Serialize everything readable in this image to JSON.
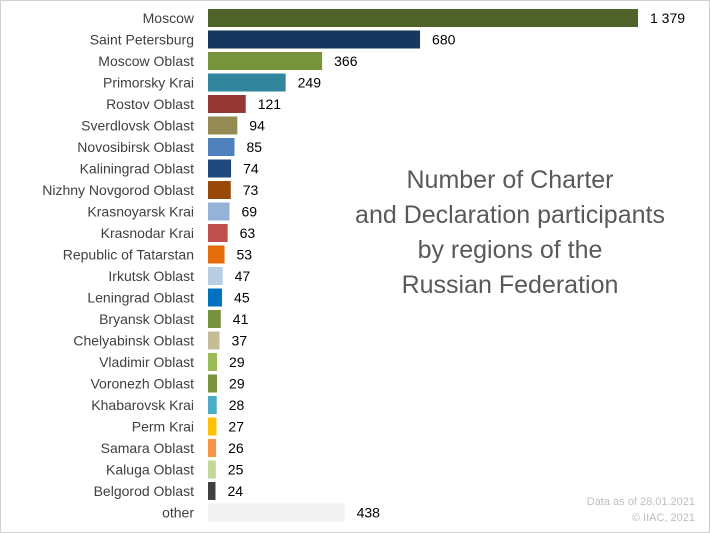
{
  "chart_data": {
    "type": "bar",
    "orientation": "horizontal",
    "title_lines": [
      "Number of Charter",
      "and Declaration participants",
      "by regions of the",
      "Russian Federation"
    ],
    "xlabel": "",
    "ylabel": "",
    "grid": false,
    "legend": "none",
    "categories": [
      "Moscow",
      "Saint Petersburg",
      "Moscow Oblast",
      "Primorsky Krai",
      "Rostov Oblast",
      "Sverdlovsk Oblast",
      "Novosibirsk Oblast",
      "Kaliningrad Oblast",
      "Nizhny Novgorod Oblast",
      "Krasnoyarsk Krai",
      "Krasnodar Krai",
      "Republic of Tatarstan",
      "Irkutsk Oblast",
      "Leningrad Oblast",
      "Bryansk Oblast",
      "Chelyabinsk Oblast",
      "Vladimir Oblast",
      "Voronezh Oblast",
      "Khabarovsk Krai",
      "Perm Krai",
      "Samara Oblast",
      "Kaluga Oblast",
      "Belgorod Oblast",
      "other"
    ],
    "values": [
      1379,
      680,
      366,
      249,
      121,
      94,
      85,
      74,
      73,
      69,
      63,
      53,
      47,
      45,
      41,
      37,
      29,
      29,
      28,
      27,
      26,
      25,
      24,
      438
    ],
    "value_labels": [
      "1 379",
      "680",
      "366",
      "249",
      "121",
      "94",
      "85",
      "74",
      "73",
      "69",
      "63",
      "53",
      "47",
      "45",
      "41",
      "37",
      "29",
      "29",
      "28",
      "27",
      "26",
      "25",
      "24",
      "438"
    ],
    "colors": [
      "#4f6228",
      "#17375e",
      "#77933c",
      "#31859c",
      "#953735",
      "#948a54",
      "#4f81bd",
      "#1f497d",
      "#984807",
      "#95b3d7",
      "#c0504d",
      "#e46c0a",
      "#b9cde5",
      "#0070c0",
      "#76923c",
      "#c4bd97",
      "#9bbb59",
      "#77933c",
      "#4bacc6",
      "#ffc000",
      "#f79646",
      "#c3d69b",
      "#404040",
      "#f2f2f2"
    ],
    "xlim": [
      0,
      1379
    ]
  },
  "footnote": {
    "line1": "Data as of 28.01.2021",
    "line2": "© IIAC, 2021"
  }
}
